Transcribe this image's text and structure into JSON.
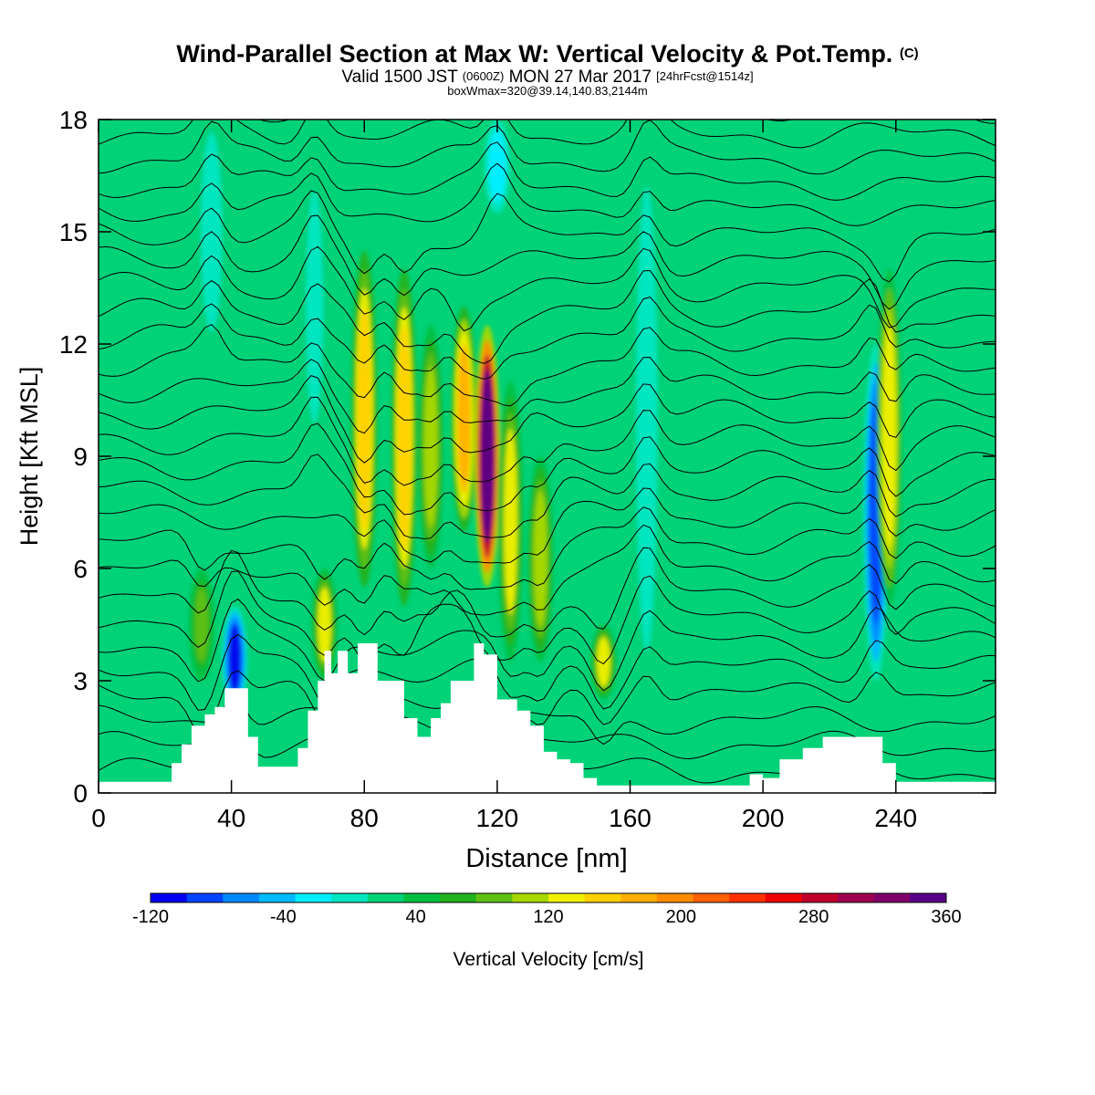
{
  "chart_data": {
    "type": "heatmap",
    "title": "Wind-Parallel Section at Max W: Vertical Velocity & Pot.Temp.",
    "title_mark": "(C)",
    "subtitle": {
      "prefix": "Valid 1500 JST",
      "utc": "(0600Z)",
      "date": "MON 27 Mar 2017",
      "forecast": "[24hrFcst@1514z]"
    },
    "box_info": "boxWmax=320@39.14,140.83,2144m",
    "xlabel": "Distance [nm]",
    "ylabel": "Height [Kft MSL]",
    "xlim": [
      0,
      270
    ],
    "ylim": [
      0,
      18
    ],
    "x_ticks": [
      0,
      40,
      80,
      120,
      160,
      200,
      240
    ],
    "y_ticks": [
      0,
      3,
      6,
      9,
      12,
      15,
      18
    ],
    "colorbar": {
      "label": "Vertical Velocity [cm/s]",
      "min": -120,
      "max": 360,
      "step": 20,
      "tick_labels": [
        -120,
        -40,
        40,
        120,
        200,
        280,
        360
      ],
      "colors": [
        "#0000ee",
        "#0044ff",
        "#0088ff",
        "#00bbff",
        "#00eeff",
        "#00e6c0",
        "#00d278",
        "#00c040",
        "#22b21e",
        "#60c014",
        "#a8d800",
        "#f0f000",
        "#ffd000",
        "#ffb000",
        "#ff8c00",
        "#ff6000",
        "#ff3000",
        "#ee0000",
        "#c0002a",
        "#a00050",
        "#80006a",
        "#580088"
      ]
    },
    "background_value": 10,
    "terrain_kft": [
      [
        0,
        0.3
      ],
      [
        18,
        0.3
      ],
      [
        22,
        0.8
      ],
      [
        25,
        1.3
      ],
      [
        28,
        1.8
      ],
      [
        32,
        2.1
      ],
      [
        35,
        2.3
      ],
      [
        38,
        2.8
      ],
      [
        42,
        2.8
      ],
      [
        45,
        1.5
      ],
      [
        48,
        0.7
      ],
      [
        55,
        0.7
      ],
      [
        60,
        1.2
      ],
      [
        63,
        2.2
      ],
      [
        66,
        3.0
      ],
      [
        68,
        3.8
      ],
      [
        70,
        3.2
      ],
      [
        72,
        3.8
      ],
      [
        75,
        3.2
      ],
      [
        78,
        4.0
      ],
      [
        81,
        4.0
      ],
      [
        84,
        3.0
      ],
      [
        88,
        3.0
      ],
      [
        92,
        2.0
      ],
      [
        96,
        1.5
      ],
      [
        100,
        2.0
      ],
      [
        103,
        2.4
      ],
      [
        106,
        3.0
      ],
      [
        110,
        3.0
      ],
      [
        113,
        4.0
      ],
      [
        116,
        3.7
      ],
      [
        120,
        2.5
      ],
      [
        126,
        2.2
      ],
      [
        130,
        1.8
      ],
      [
        134,
        1.1
      ],
      [
        138,
        0.9
      ],
      [
        142,
        0.8
      ],
      [
        146,
        0.4
      ],
      [
        150,
        0.2
      ],
      [
        190,
        0.2
      ],
      [
        196,
        0.5
      ],
      [
        200,
        0.4
      ],
      [
        205,
        0.9
      ],
      [
        212,
        1.2
      ],
      [
        218,
        1.5
      ],
      [
        228,
        1.5
      ],
      [
        232,
        1.5
      ],
      [
        236,
        0.8
      ],
      [
        240,
        0.3
      ],
      [
        270,
        0.3
      ]
    ],
    "updraft_cells": [
      {
        "x": 80,
        "z0": 5.5,
        "z1": 14.5,
        "w": 130
      },
      {
        "x": 92,
        "z0": 5.0,
        "z1": 14.0,
        "w": 130
      },
      {
        "x": 100,
        "z0": 6.0,
        "z1": 12.5,
        "w": 80
      },
      {
        "x": 110,
        "z0": 7.0,
        "z1": 13.0,
        "w": 150
      },
      {
        "x": 117,
        "z0": 5.5,
        "z1": 12.5,
        "w": 320
      },
      {
        "x": 124,
        "z0": 3.5,
        "z1": 11.0,
        "w": 100
      },
      {
        "x": 133,
        "z0": 3.5,
        "z1": 9.0,
        "w": 80
      },
      {
        "x": 152,
        "z0": 2.5,
        "z1": 4.5,
        "w": 100
      },
      {
        "x": 68,
        "z0": 3.0,
        "z1": 6.0,
        "w": 100
      },
      {
        "x": 238,
        "z0": 5.0,
        "z1": 14.0,
        "w": 110
      },
      {
        "x": 31,
        "z0": 3.0,
        "z1": 6.0,
        "w": 60
      }
    ],
    "downdraft_cells": [
      {
        "x": 41,
        "z0": 2.2,
        "z1": 5.0,
        "w": -110
      },
      {
        "x": 234,
        "z0": 3.0,
        "z1": 12.0,
        "w": -100
      },
      {
        "x": 65,
        "z0": 9.0,
        "z1": 17.0,
        "w": -10
      },
      {
        "x": 120,
        "z0": 15.5,
        "z1": 18.0,
        "w": -40
      },
      {
        "x": 34,
        "z0": 12.0,
        "z1": 18.0,
        "w": -20
      },
      {
        "x": 165,
        "z0": 3.0,
        "z1": 17.0,
        "w": -15
      }
    ],
    "theta_contours": 28
  }
}
